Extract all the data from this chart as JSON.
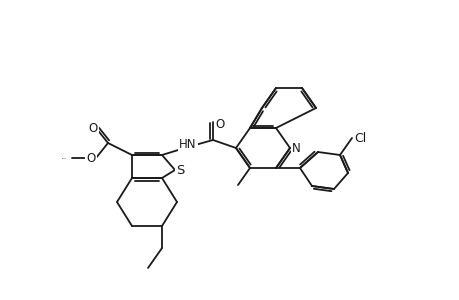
{
  "background_color": "#ffffff",
  "line_color": "#1a1a1a",
  "line_width": 1.3,
  "font_size": 8.5,
  "bold_atoms": [
    "S",
    "N",
    "O",
    "Cl",
    "HN"
  ]
}
